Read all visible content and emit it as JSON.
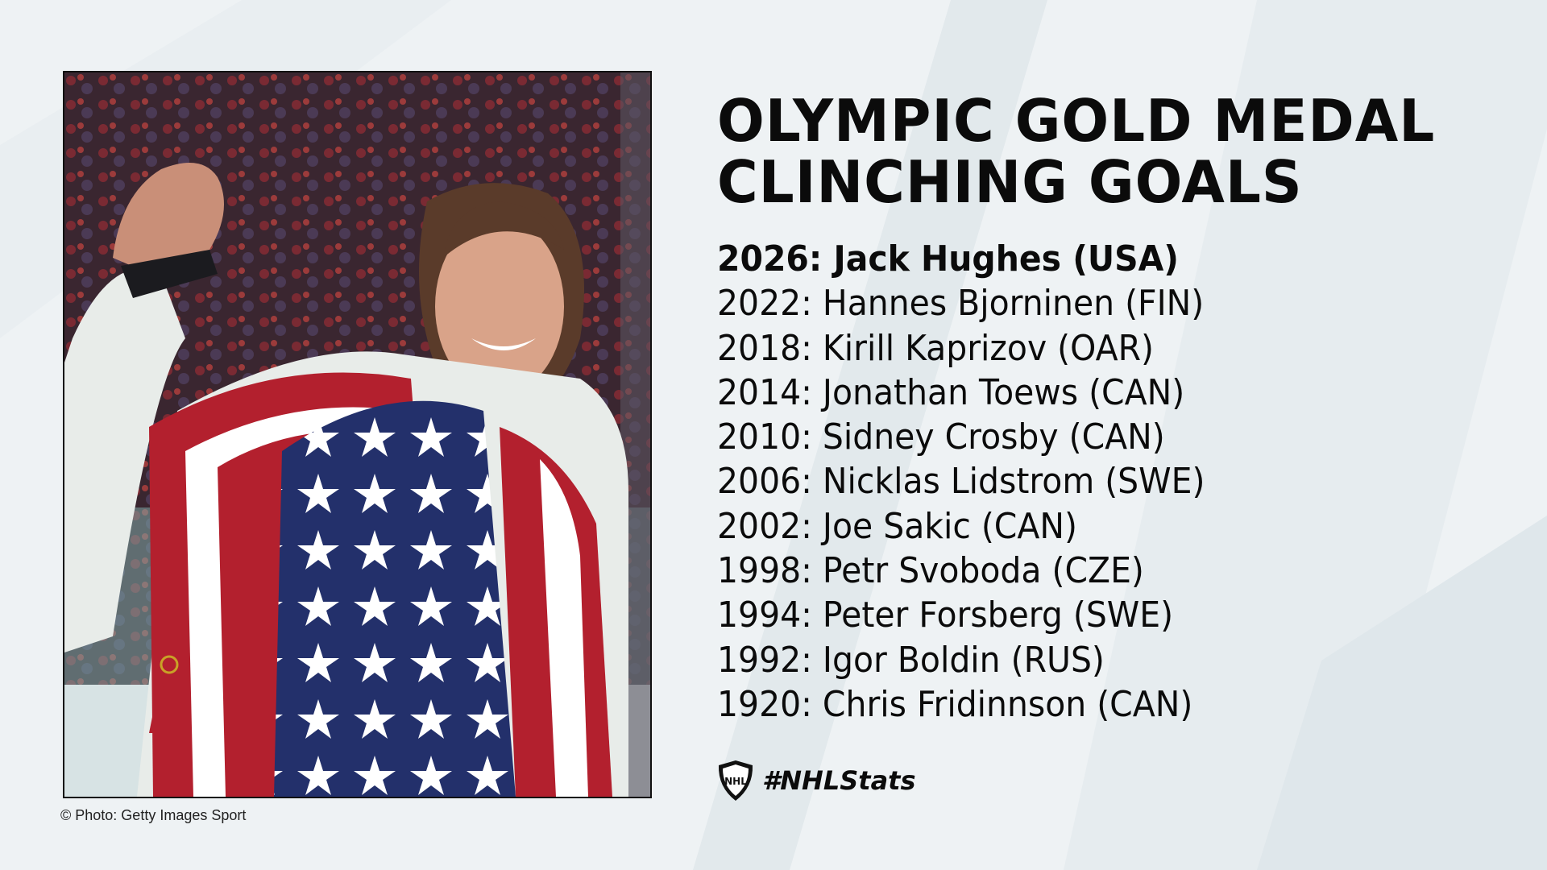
{
  "photo": {
    "icon": "photo-of-player-draped-in-usa-flag"
  },
  "credit": "© Photo: Getty Images Sport",
  "title": {
    "line1": "OLYMPIC GOLD MEDAL",
    "line2": "CLINCHING GOALS"
  },
  "goals": [
    "2026: Jack Hughes (USA)",
    "2022: Hannes Bjorninen (FIN)",
    "2018: Kirill Kaprizov (OAR)",
    "2014: Jonathan Toews (CAN)",
    "2010: Sidney Crosby (CAN)",
    "2006: Nicklas Lidstrom (SWE)",
    "2002: Joe Sakic (CAN)",
    "1998: Petr Svoboda (CZE)",
    "1994: Peter Forsberg (SWE)",
    "1992: Igor Boldin (RUS)",
    "1920: Chris Fridinnson (CAN)"
  ],
  "brand": {
    "logo_icon": "nhl-shield-icon",
    "hashtag": "#NHLStats",
    "logo_text": "NHL"
  },
  "colors": {
    "background": "#eef2f4",
    "text": "#0b0b0b",
    "flag_red": "#b3202e",
    "flag_blue": "#23306b"
  }
}
